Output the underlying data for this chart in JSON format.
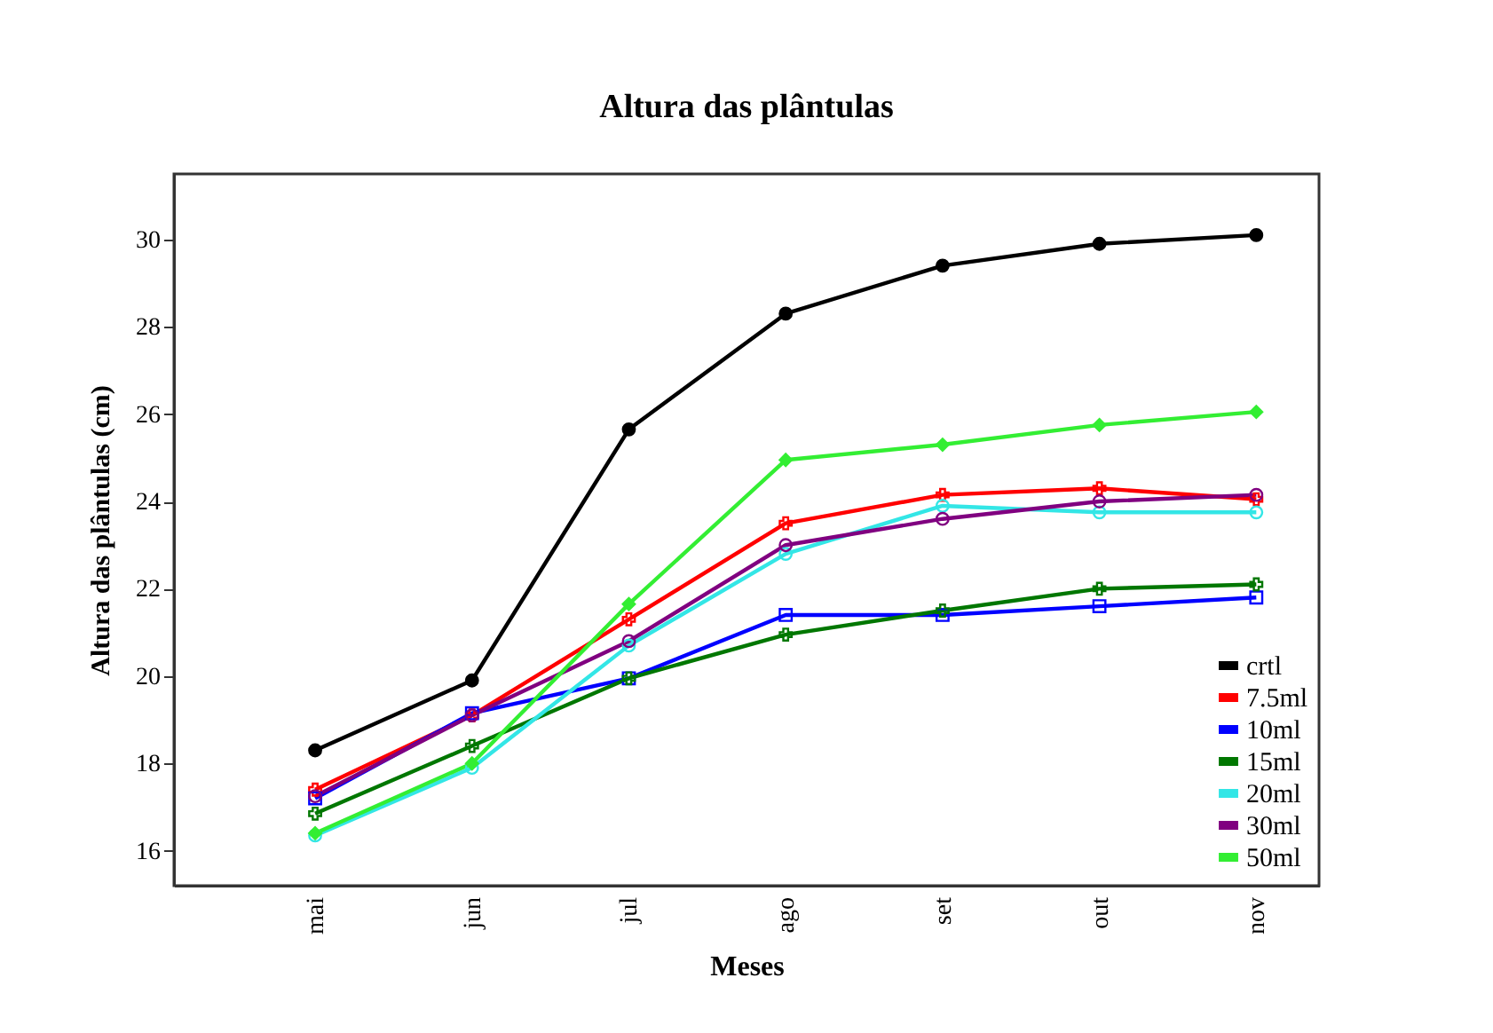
{
  "chart_data": {
    "type": "line",
    "title": "Altura das plântulas",
    "xlabel": "Meses",
    "ylabel": "Altura das plântulas (cm)",
    "categories": [
      "mai",
      "jun",
      "jul",
      "ago",
      "set",
      "out",
      "nov"
    ],
    "series": [
      {
        "name": "crtl",
        "color": "#000000",
        "marker": "circle",
        "values": [
          18.3,
          19.9,
          25.65,
          28.3,
          29.4,
          29.9,
          30.1
        ]
      },
      {
        "name": "7.5ml",
        "color": "#ff0000",
        "marker": "cross",
        "values": [
          17.4,
          19.1,
          21.3,
          23.5,
          24.15,
          24.3,
          24.05
        ]
      },
      {
        "name": "10ml",
        "color": "#0000ff",
        "marker": "square",
        "values": [
          17.2,
          19.15,
          19.95,
          21.4,
          21.4,
          21.6,
          21.8
        ]
      },
      {
        "name": "15ml",
        "color": "#007700",
        "marker": "cross",
        "values": [
          16.85,
          18.4,
          19.95,
          20.95,
          21.5,
          22.0,
          22.1
        ]
      },
      {
        "name": "20ml",
        "color": "#33e6e6",
        "marker": "circle",
        "values": [
          16.35,
          17.9,
          20.7,
          22.8,
          23.9,
          23.75,
          23.75
        ]
      },
      {
        "name": "30ml",
        "color": "#800080",
        "marker": "circle",
        "values": [
          17.25,
          19.1,
          20.8,
          23.0,
          23.6,
          24.0,
          24.15
        ]
      },
      {
        "name": "50ml",
        "color": "#33ee33",
        "marker": "diamond",
        "values": [
          16.4,
          18.0,
          21.65,
          24.95,
          25.3,
          25.75,
          26.05
        ]
      }
    ],
    "ylim": [
      15.2,
      31.5
    ],
    "yticks": [
      16,
      18,
      20,
      22,
      24,
      26,
      28,
      30
    ],
    "grid": false,
    "legend": "bottom right",
    "line_style": "solid"
  }
}
